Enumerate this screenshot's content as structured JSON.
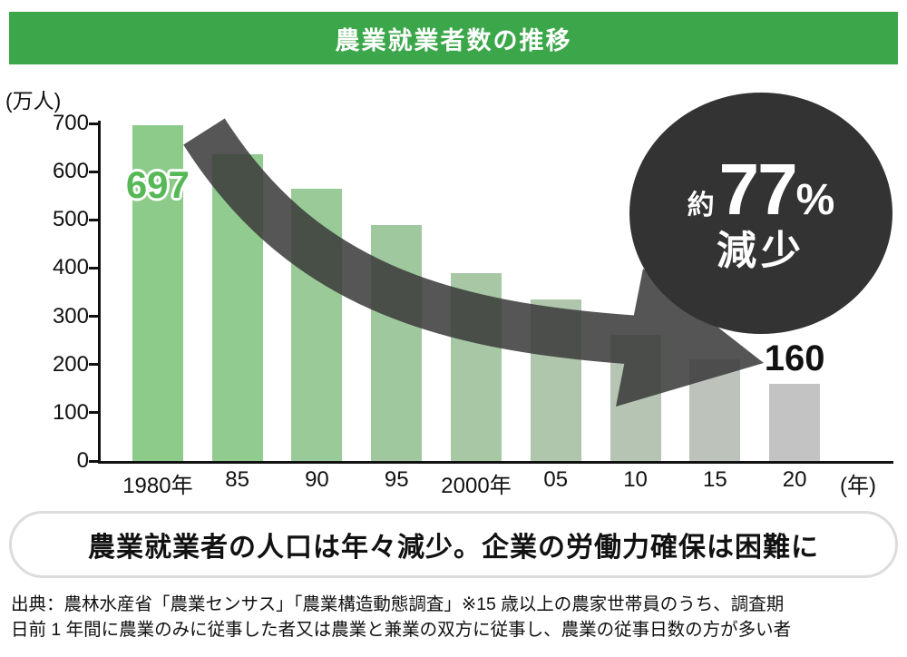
{
  "header": {
    "title": "農業就業者数の推移"
  },
  "colors": {
    "header_bg": "#3BA74A",
    "arrow": "#3A3A3A",
    "badge_bg": "#333333",
    "first_label": "#57B857",
    "axis": "#111111"
  },
  "chart_data": {
    "type": "bar",
    "title": "農業就業者数の推移",
    "unit_label": "(万人)",
    "x_suffix": "(年)",
    "categories": [
      "1980年",
      "85",
      "90",
      "95",
      "2000年",
      "05",
      "10",
      "15",
      "20"
    ],
    "values": [
      697,
      636,
      565,
      490,
      389,
      335,
      261,
      210,
      160
    ],
    "bar_colors": [
      "#8CCB8A",
      "#92CB90",
      "#99CA97",
      "#A0C89E",
      "#A8C7A5",
      "#AFC5AC",
      "#B6C4B4",
      "#BDC3BB",
      "#C3C3C3"
    ],
    "ylim": [
      0,
      700
    ],
    "yticks": [
      0,
      100,
      200,
      300,
      400,
      500,
      600,
      700
    ],
    "grid": false,
    "first_bar_label": "697",
    "last_bar_label": "160",
    "annotation": {
      "approx": "約",
      "value": "77",
      "unit": "%",
      "label": "減少"
    }
  },
  "callout": {
    "text": "農業就業者の人口は年々減少。企業の労働力確保は困難に"
  },
  "source": {
    "line1": "出典：農林水産省「農業センサス」「農業構造動態調査」※15 歳以上の農家世帯員のうち、調査期",
    "line2": "日前 1 年間に農業のみに従事した者又は農業と兼業の双方に従事し、農業の従事日数の方が多い者"
  }
}
